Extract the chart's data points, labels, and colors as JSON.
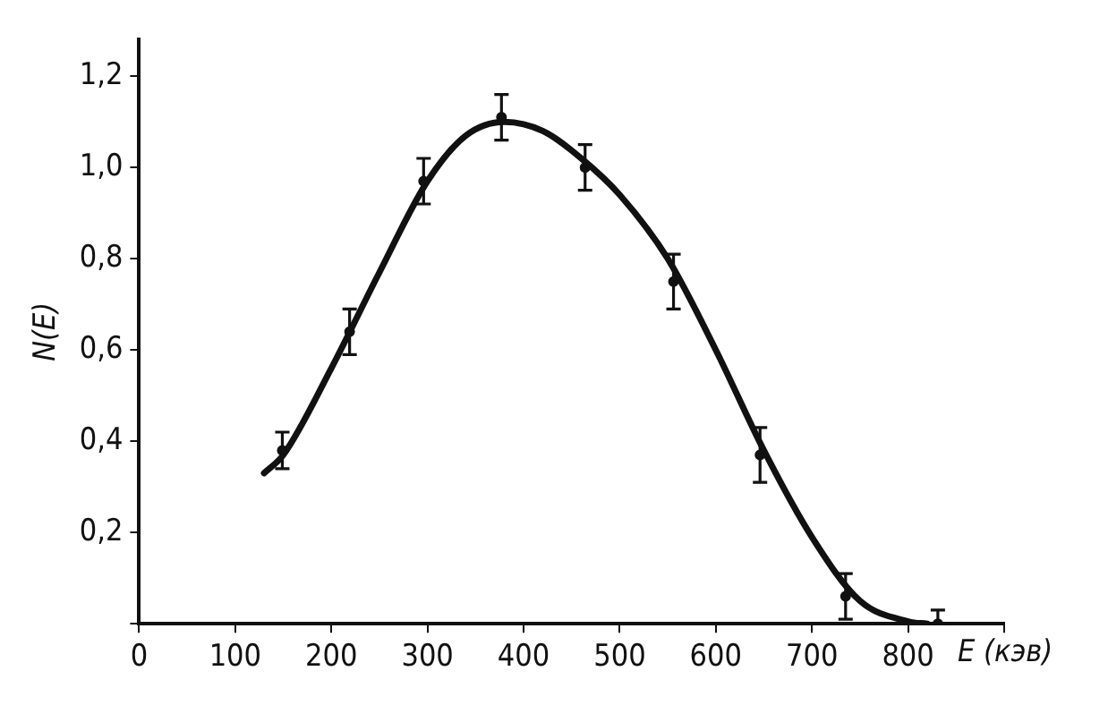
{
  "chart_data": {
    "type": "scatter",
    "xlabel": "E (кэв)",
    "ylabel": "N(E)",
    "xlim": [
      0,
      900
    ],
    "ylim": [
      0,
      1.28
    ],
    "xticks": [
      {
        "value": 0,
        "label": "0"
      },
      100,
      200,
      300,
      400,
      500,
      600,
      700,
      800,
      {
        "value": 900,
        "label": null
      }
    ],
    "yticks": [
      {
        "value": 0,
        "label": null
      },
      {
        "value": 0.2,
        "label": "0,2"
      },
      {
        "value": 0.4,
        "label": "0,4"
      },
      {
        "value": 0.6,
        "label": "0,6"
      },
      {
        "value": 0.8,
        "label": "0,8"
      },
      {
        "value": 1.0,
        "label": "1,0"
      },
      {
        "value": 1.2,
        "label": "1,2"
      }
    ],
    "grid": false,
    "legend": false,
    "marker": "circle",
    "series": [
      {
        "type": "scatter",
        "color": "#111111",
        "x": [
          149,
          219,
          296,
          377,
          464,
          556,
          646,
          735,
          831
        ],
        "values": [
          0.38,
          0.64,
          0.97,
          1.11,
          1.0,
          0.75,
          0.37,
          0.06,
          0.0
        ],
        "errors": [
          0.04,
          0.05,
          0.05,
          0.05,
          0.05,
          0.06,
          0.06,
          0.05,
          [
            0,
            0.03
          ]
        ]
      },
      {
        "type": "line",
        "color": "#111111",
        "line_style": "solid",
        "marker": "none",
        "x": [
          130,
          150,
          200,
          250,
          300,
          340,
          380,
          420,
          460,
          500,
          550,
          600,
          650,
          700,
          750,
          800,
          820
        ],
        "values": [
          0.33,
          0.37,
          0.56,
          0.77,
          0.97,
          1.07,
          1.1,
          1.08,
          1.02,
          0.94,
          0.8,
          0.6,
          0.38,
          0.19,
          0.05,
          0.005,
          0.0
        ]
      }
    ]
  }
}
